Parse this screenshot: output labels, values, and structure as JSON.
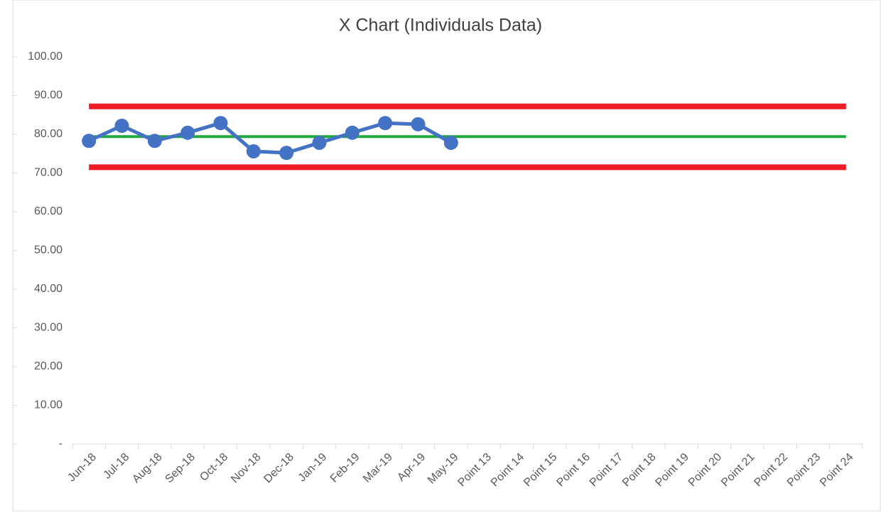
{
  "chart_data": {
    "type": "line",
    "title": "X Chart (Individuals Data)",
    "categories": [
      "Jun-18",
      "Jul-18",
      "Aug-18",
      "Sep-18",
      "Oct-18",
      "Nov-18",
      "Dec-18",
      "Jan-19",
      "Feb-19",
      "Mar-19",
      "Apr-19",
      "May-19",
      "Point 13",
      "Point 14",
      "Point 15",
      "Point 16",
      "Point 17",
      "Point 18",
      "Point 19",
      "Point 20",
      "Point 21",
      "Point 22",
      "Point 23",
      "Point 24"
    ],
    "series": [
      {
        "color": "#ee1c25",
        "values": [
          87.2,
          87.2,
          87.2,
          87.2,
          87.2,
          87.2,
          87.2,
          87.2,
          87.2,
          87.2,
          87.2,
          87.2,
          87.2,
          87.2,
          87.2,
          87.2,
          87.2,
          87.2,
          87.2,
          87.2,
          87.2,
          87.2,
          87.2,
          87.2
        ]
      },
      {
        "color": "#ee1c25",
        "values": [
          71.5,
          71.5,
          71.5,
          71.5,
          71.5,
          71.5,
          71.5,
          71.5,
          71.5,
          71.5,
          71.5,
          71.5,
          71.5,
          71.5,
          71.5,
          71.5,
          71.5,
          71.5,
          71.5,
          71.5,
          71.5,
          71.5,
          71.5,
          71.5
        ]
      },
      {
        "color": "#21a840",
        "values": [
          79.4,
          79.4,
          79.4,
          79.4,
          79.4,
          79.4,
          79.4,
          79.4,
          79.4,
          79.4,
          79.4,
          79.4,
          79.4,
          79.4,
          79.4,
          79.4,
          79.4,
          79.4,
          79.4,
          79.4,
          79.4,
          79.4,
          79.4,
          79.4
        ]
      },
      {
        "color": "#4472c4",
        "marker": true,
        "values": [
          78.3,
          82.2,
          78.3,
          80.4,
          82.9,
          75.6,
          75.2,
          77.8,
          80.4,
          82.9,
          82.6,
          77.8,
          null,
          null,
          null,
          null,
          null,
          null,
          null,
          null,
          null,
          null,
          null,
          null
        ]
      }
    ],
    "ylim": [
      0,
      100
    ],
    "yticks": [
      {
        "value": 0,
        "label": "-"
      },
      {
        "value": 10,
        "label": "10.00"
      },
      {
        "value": 20,
        "label": "20.00"
      },
      {
        "value": 30,
        "label": "30.00"
      },
      {
        "value": 40,
        "label": "40.00"
      },
      {
        "value": 50,
        "label": "50.00"
      },
      {
        "value": 60,
        "label": "60.00"
      },
      {
        "value": 70,
        "label": "70.00"
      },
      {
        "value": 80,
        "label": "80.00"
      },
      {
        "value": 90,
        "label": "90.00"
      },
      {
        "value": 100,
        "label": "100.00"
      }
    ],
    "grid": false
  }
}
